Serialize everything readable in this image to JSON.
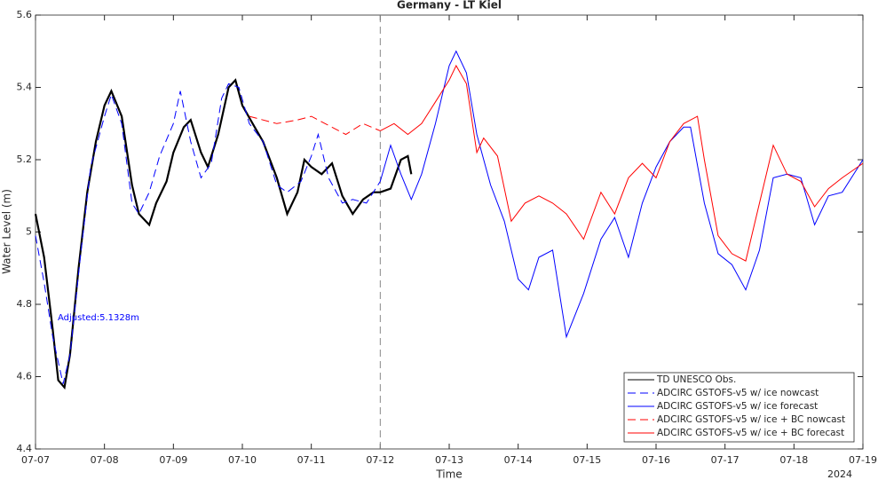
{
  "chart_data": {
    "type": "line",
    "title": "Germany - LT Kiel",
    "xlabel": "Time",
    "ylabel": "Water Level (m)",
    "x_corner_label": "2024",
    "annotation": {
      "text": "Adjusted:5.1328m",
      "color": "#0000ff"
    },
    "xlim": [
      0,
      12
    ],
    "xticks": [
      {
        "value": 0,
        "label": "07-07"
      },
      {
        "value": 1,
        "label": "07-08"
      },
      {
        "value": 2,
        "label": "07-09"
      },
      {
        "value": 3,
        "label": "07-10"
      },
      {
        "value": 4,
        "label": "07-11"
      },
      {
        "value": 5,
        "label": "07-12"
      },
      {
        "value": 6,
        "label": "07-13"
      },
      {
        "value": 7,
        "label": "07-14"
      },
      {
        "value": 8,
        "label": "07-15"
      },
      {
        "value": 9,
        "label": "07-16"
      },
      {
        "value": 10,
        "label": "07-17"
      },
      {
        "value": 11,
        "label": "07-18"
      },
      {
        "value": 12,
        "label": "07-19"
      }
    ],
    "ylim": [
      4.4,
      5.6
    ],
    "yticks": [
      4.4,
      4.6,
      4.8,
      5,
      5.2,
      5.4,
      5.6
    ],
    "vline": 5,
    "grid": false,
    "legend": "lower right",
    "series": [
      {
        "name": "TD UNESCO Obs.",
        "color": "#000000",
        "dash": false,
        "x": [
          0,
          0.125,
          0.25,
          0.33,
          0.42,
          0.5,
          0.625,
          0.75,
          0.875,
          1.0,
          1.1,
          1.25,
          1.4,
          1.5,
          1.65,
          1.75,
          1.9,
          2.0,
          2.15,
          2.25,
          2.4,
          2.5,
          2.65,
          2.8,
          2.9,
          3.0,
          3.15,
          3.3,
          3.5,
          3.65,
          3.8,
          3.9,
          4.0,
          4.15,
          4.3,
          4.45,
          4.6,
          4.75,
          4.9,
          5.0,
          5.15,
          5.3,
          5.4,
          5.45
        ],
        "values": [
          5.05,
          4.93,
          4.73,
          4.59,
          4.57,
          4.66,
          4.9,
          5.11,
          5.25,
          5.35,
          5.39,
          5.32,
          5.13,
          5.05,
          5.02,
          5.08,
          5.14,
          5.22,
          5.29,
          5.31,
          5.22,
          5.18,
          5.27,
          5.4,
          5.42,
          5.35,
          5.3,
          5.25,
          5.15,
          5.05,
          5.11,
          5.2,
          5.18,
          5.16,
          5.19,
          5.1,
          5.05,
          5.09,
          5.11,
          5.11,
          5.12,
          5.2,
          5.21,
          5.16
        ]
      },
      {
        "name": "ADCIRC GSTOFS-v5 w/ ice nowcast",
        "color": "#0000ff",
        "dash": true,
        "x": [
          0,
          0.125,
          0.25,
          0.4,
          0.5,
          0.65,
          0.8,
          1.0,
          1.1,
          1.25,
          1.4,
          1.5,
          1.65,
          1.8,
          2.0,
          2.1,
          2.25,
          2.4,
          2.55,
          2.7,
          2.8,
          2.95,
          3.1,
          3.3,
          3.5,
          3.65,
          3.85,
          4.0,
          4.1,
          4.25,
          4.45,
          4.6,
          4.8,
          5.0
        ],
        "values": [
          4.99,
          4.86,
          4.71,
          4.58,
          4.66,
          4.93,
          5.18,
          5.32,
          5.38,
          5.3,
          5.08,
          5.05,
          5.11,
          5.21,
          5.3,
          5.39,
          5.25,
          5.15,
          5.19,
          5.37,
          5.41,
          5.4,
          5.3,
          5.25,
          5.13,
          5.11,
          5.14,
          5.21,
          5.27,
          5.15,
          5.08,
          5.09,
          5.08,
          5.14
        ]
      },
      {
        "name": "ADCIRC GSTOFS-v5 w/ ice forecast",
        "color": "#0000ff",
        "dash": false,
        "x": [
          5.0,
          5.15,
          5.3,
          5.45,
          5.6,
          5.8,
          6.0,
          6.1,
          6.25,
          6.4,
          6.6,
          6.8,
          7.0,
          7.15,
          7.3,
          7.5,
          7.7,
          7.95,
          8.2,
          8.4,
          8.6,
          8.8,
          9.0,
          9.2,
          9.4,
          9.5,
          9.7,
          9.9,
          10.1,
          10.3,
          10.5,
          10.7,
          10.9,
          11.1,
          11.3,
          11.5,
          11.7,
          12.0
        ],
        "values": [
          5.14,
          5.24,
          5.16,
          5.09,
          5.16,
          5.3,
          5.46,
          5.5,
          5.44,
          5.27,
          5.13,
          5.03,
          4.87,
          4.84,
          4.93,
          4.95,
          4.71,
          4.83,
          4.98,
          5.04,
          4.93,
          5.08,
          5.18,
          5.25,
          5.29,
          5.29,
          5.08,
          4.94,
          4.91,
          4.84,
          4.95,
          5.15,
          5.16,
          5.15,
          5.02,
          5.1,
          5.11,
          5.2
        ]
      },
      {
        "name": "ADCIRC GSTOFS-v5 w/ ice + BC nowcast",
        "color": "#ff0000",
        "dash": true,
        "x": [
          3.1,
          3.5,
          3.8,
          4.0,
          4.2,
          4.5,
          4.75,
          5.0
        ],
        "values": [
          5.32,
          5.3,
          5.31,
          5.32,
          5.3,
          5.27,
          5.3,
          5.28
        ]
      },
      {
        "name": "ADCIRC GSTOFS-v5 w/ ice + BC forecast",
        "color": "#ff0000",
        "dash": false,
        "x": [
          5.0,
          5.2,
          5.4,
          5.6,
          5.8,
          6.0,
          6.1,
          6.25,
          6.4,
          6.5,
          6.7,
          6.9,
          7.1,
          7.3,
          7.5,
          7.7,
          7.95,
          8.2,
          8.4,
          8.6,
          8.8,
          9.0,
          9.2,
          9.4,
          9.6,
          9.7,
          9.9,
          10.1,
          10.3,
          10.5,
          10.7,
          10.9,
          11.1,
          11.3,
          11.5,
          11.7,
          12.0
        ],
        "values": [
          5.28,
          5.3,
          5.27,
          5.3,
          5.36,
          5.42,
          5.46,
          5.41,
          5.22,
          5.26,
          5.21,
          5.03,
          5.08,
          5.1,
          5.08,
          5.05,
          4.98,
          5.11,
          5.05,
          5.15,
          5.19,
          5.15,
          5.25,
          5.3,
          5.32,
          5.2,
          4.99,
          4.94,
          4.92,
          5.08,
          5.24,
          5.16,
          5.14,
          5.07,
          5.12,
          5.15,
          5.19
        ]
      }
    ]
  }
}
